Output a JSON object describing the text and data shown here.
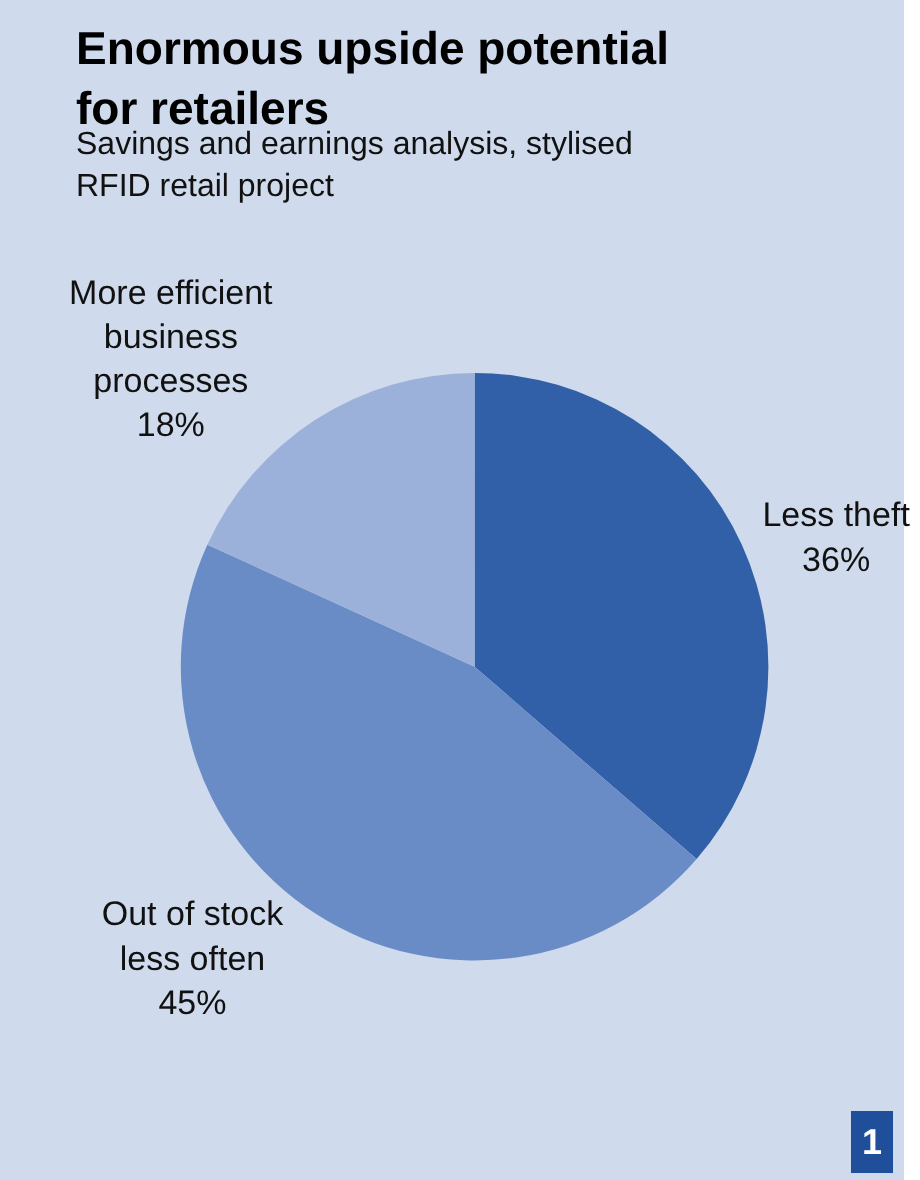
{
  "chart_data": {
    "type": "pie",
    "title": "Enormous upside potential for retailers",
    "subtitle": "Savings and earnings analysis, stylised RFID retail project",
    "categories": [
      "Less theft",
      "Out of stock less often",
      "More efficient business processes"
    ],
    "values": [
      36,
      45,
      18
    ],
    "value_labels": [
      "36%",
      "45%",
      "18%"
    ],
    "colors": [
      "#3260a8",
      "#6a8cc6",
      "#9cb1da"
    ],
    "legend": false,
    "annotations": [
      "1"
    ]
  }
}
